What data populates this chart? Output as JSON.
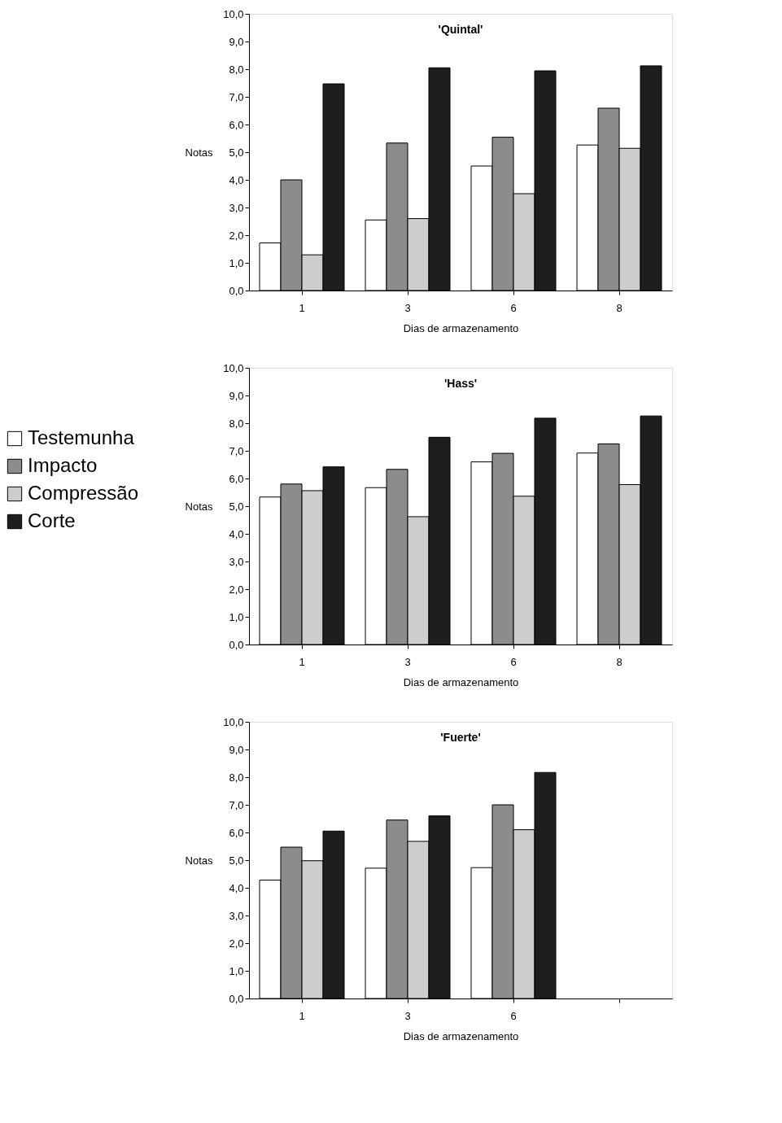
{
  "chart_data": [
    {
      "type": "bar",
      "title": "'Quintal'",
      "xlabel": "Dias de armazenamento",
      "ylabel": "Notas",
      "categories": [
        "1",
        "3",
        "6",
        "8"
      ],
      "ylim": [
        0,
        10
      ],
      "yticks": [
        {
          "value": 0,
          "label": "0,0"
        },
        {
          "value": 1,
          "label": "1,0"
        },
        {
          "value": 2,
          "label": "2,0"
        },
        {
          "value": 3,
          "label": "3,0"
        },
        {
          "value": 4,
          "label": "4,0"
        },
        {
          "value": 5,
          "label": "5,0"
        },
        {
          "value": 6,
          "label": "6,0"
        },
        {
          "value": 7,
          "label": "7,0"
        },
        {
          "value": 8,
          "label": "8,0"
        },
        {
          "value": 9,
          "label": "9,0"
        },
        {
          "value": 10,
          "label": "10,0"
        }
      ],
      "grid": false,
      "legend": "left",
      "series": [
        {
          "name": "Testemunha",
          "color": "#ffffff",
          "values": [
            1.72,
            2.55,
            4.5,
            5.26
          ]
        },
        {
          "name": "Impacto",
          "color": "#8c8c8c",
          "values": [
            4.0,
            5.33,
            5.54,
            6.59
          ]
        },
        {
          "name": "Compressão",
          "color": "#cdcdcd",
          "values": [
            1.29,
            2.6,
            3.5,
            5.14
          ]
        },
        {
          "name": "Corte",
          "color": "#1e1e1e",
          "values": [
            7.47,
            8.05,
            7.94,
            8.12
          ]
        }
      ]
    },
    {
      "type": "bar",
      "title": "'Hass'",
      "xlabel": "Dias de armazenamento",
      "ylabel": "Notas",
      "categories": [
        "1",
        "3",
        "6",
        "8"
      ],
      "ylim": [
        0,
        10
      ],
      "yticks": [
        {
          "value": 0,
          "label": "0,0"
        },
        {
          "value": 1,
          "label": "1,0"
        },
        {
          "value": 2,
          "label": "2,0"
        },
        {
          "value": 3,
          "label": "3,0"
        },
        {
          "value": 4,
          "label": "4,0"
        },
        {
          "value": 5,
          "label": "5,0"
        },
        {
          "value": 6,
          "label": "6,0"
        },
        {
          "value": 7,
          "label": "7,0"
        },
        {
          "value": 8,
          "label": "8,0"
        },
        {
          "value": 9,
          "label": "9,0"
        },
        {
          "value": 10,
          "label": "10,0"
        }
      ],
      "grid": false,
      "series": [
        {
          "color": "#ffffff",
          "values": [
            5.33,
            5.67,
            6.6,
            6.92
          ]
        },
        {
          "color": "#8c8c8c",
          "values": [
            5.8,
            6.33,
            6.91,
            7.25
          ]
        },
        {
          "color": "#cdcdcd",
          "values": [
            5.56,
            4.62,
            5.36,
            5.78
          ]
        },
        {
          "color": "#1e1e1e",
          "values": [
            6.42,
            7.49,
            8.18,
            8.26
          ]
        }
      ]
    },
    {
      "type": "bar",
      "title": "'Fuerte'",
      "xlabel": "Dias de armazenamento",
      "ylabel": "Notas",
      "categories": [
        "1",
        "3",
        "6",
        null
      ],
      "ylim": [
        0,
        10
      ],
      "yticks": [
        {
          "value": 0,
          "label": "0,0"
        },
        {
          "value": 1,
          "label": "1,0"
        },
        {
          "value": 2,
          "label": "2,0"
        },
        {
          "value": 3,
          "label": "3,0"
        },
        {
          "value": 4,
          "label": "4,0"
        },
        {
          "value": 5,
          "label": "5,0"
        },
        {
          "value": 6,
          "label": "6,0"
        },
        {
          "value": 7,
          "label": "7,0"
        },
        {
          "value": 8,
          "label": "8,0"
        },
        {
          "value": 9,
          "label": "9,0"
        },
        {
          "value": 10,
          "label": "10,0"
        }
      ],
      "grid": false,
      "series": [
        {
          "color": "#ffffff",
          "values": [
            4.28,
            4.71,
            4.73,
            null
          ]
        },
        {
          "color": "#8c8c8c",
          "values": [
            5.47,
            6.45,
            7.0,
            null
          ]
        },
        {
          "color": "#cdcdcd",
          "values": [
            4.98,
            5.68,
            6.1,
            null
          ]
        },
        {
          "color": "#1e1e1e",
          "values": [
            6.05,
            6.6,
            8.17,
            null
          ]
        }
      ]
    }
  ]
}
